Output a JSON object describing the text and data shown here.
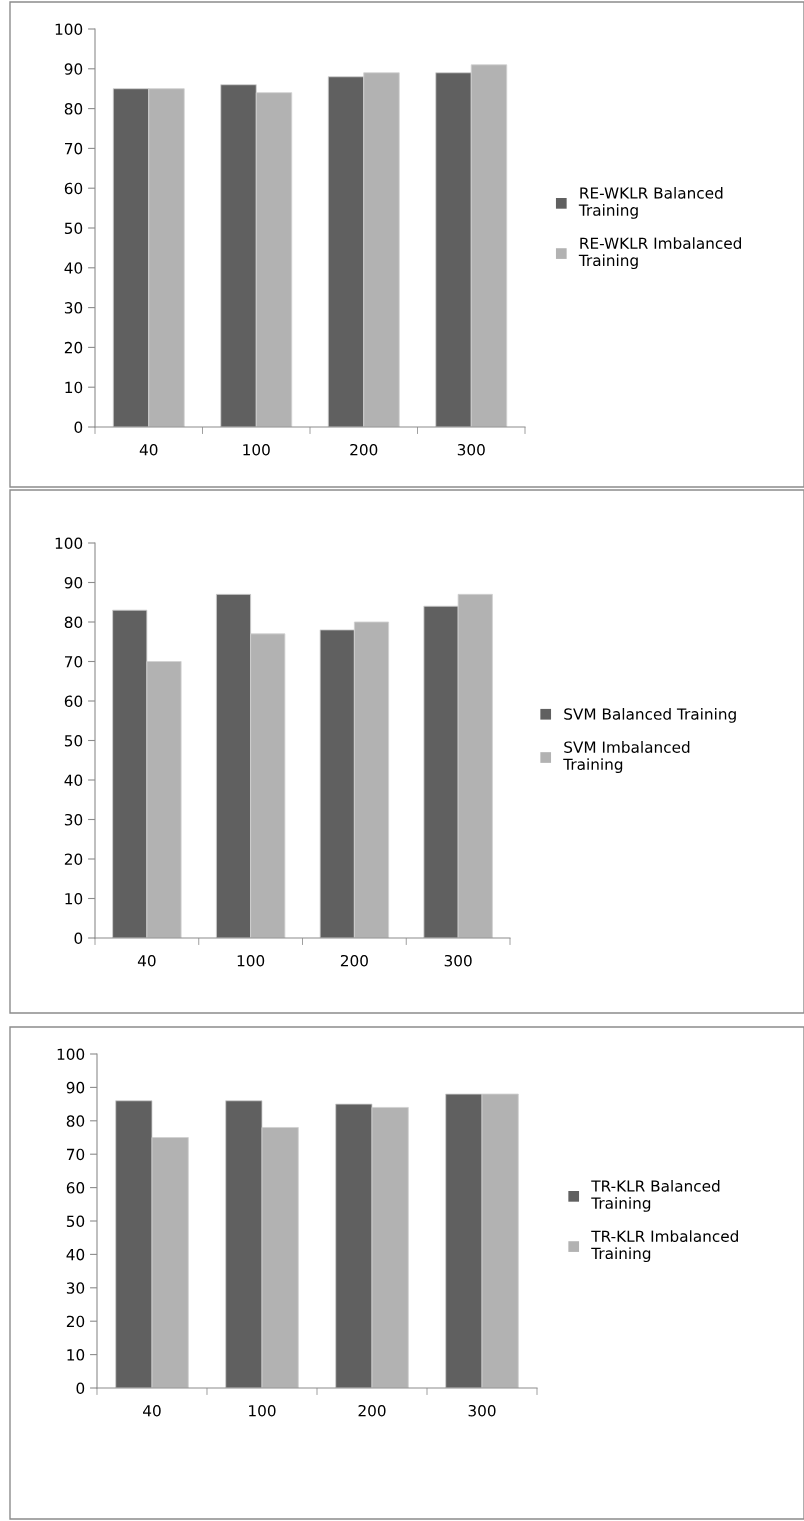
{
  "chart_data": [
    {
      "type": "bar",
      "categories": [
        "40",
        "100",
        "200",
        "300"
      ],
      "ylim": [
        0,
        100
      ],
      "yticks": [
        0,
        10,
        20,
        30,
        40,
        50,
        60,
        70,
        80,
        90,
        100
      ],
      "grid": false,
      "legend": "right",
      "series": [
        {
          "name": "RE-WKLR Balanced Training",
          "color": "#606060",
          "values": [
            85,
            86,
            88,
            89
          ]
        },
        {
          "name": "RE-WKLR Imbalanced Training",
          "color": "#b2b2b2",
          "values": [
            85,
            84,
            89,
            91
          ]
        }
      ]
    },
    {
      "type": "bar",
      "categories": [
        "40",
        "100",
        "200",
        "300"
      ],
      "ylim": [
        0,
        100
      ],
      "yticks": [
        0,
        10,
        20,
        30,
        40,
        50,
        60,
        70,
        80,
        90,
        100
      ],
      "grid": false,
      "legend": "right",
      "series": [
        {
          "name": "SVM Balanced Training",
          "color": "#606060",
          "values": [
            83,
            87,
            78,
            84
          ]
        },
        {
          "name": "SVM Imbalanced Training",
          "color": "#b2b2b2",
          "values": [
            70,
            77,
            80,
            87
          ]
        }
      ]
    },
    {
      "type": "bar",
      "categories": [
        "40",
        "100",
        "200",
        "300"
      ],
      "ylim": [
        0,
        100
      ],
      "yticks": [
        0,
        10,
        20,
        30,
        40,
        50,
        60,
        70,
        80,
        90,
        100
      ],
      "grid": false,
      "legend": "right",
      "series": [
        {
          "name": "TR-KLR Balanced Training",
          "color": "#606060",
          "values": [
            86,
            86,
            85,
            88
          ]
        },
        {
          "name": "TR-KLR Imbalanced Training",
          "color": "#b2b2b2",
          "values": [
            75,
            78,
            84,
            88
          ]
        }
      ]
    }
  ]
}
